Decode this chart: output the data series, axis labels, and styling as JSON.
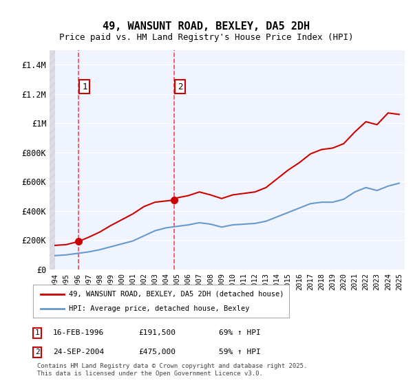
{
  "title": "49, WANSUNT ROAD, BEXLEY, DA5 2DH",
  "subtitle": "Price paid vs. HM Land Registry's House Price Index (HPI)",
  "legend_label_red": "49, WANSUNT ROAD, BEXLEY, DA5 2DH (detached house)",
  "legend_label_blue": "HPI: Average price, detached house, Bexley",
  "footer": "Contains HM Land Registry data © Crown copyright and database right 2025.\nThis data is licensed under the Open Government Licence v3.0.",
  "sale1_label": "1",
  "sale1_date": "16-FEB-1996",
  "sale1_price": "£191,500",
  "sale1_hpi": "69% ↑ HPI",
  "sale2_label": "2",
  "sale2_date": "24-SEP-2004",
  "sale2_price": "£475,000",
  "sale2_hpi": "59% ↑ HPI",
  "red_color": "#cc0000",
  "blue_color": "#6699cc",
  "vline_color": "#ff4444",
  "hatch_color": "#dddddd",
  "background_color": "#ffffff",
  "plot_bg_color": "#f0f4ff",
  "ylim": [
    0,
    1500000
  ],
  "xlim_start": 1993.5,
  "xlim_end": 2025.5,
  "sale1_year": 1996.12,
  "sale2_year": 2004.73,
  "yticks": [
    0,
    200000,
    400000,
    600000,
    800000,
    1000000,
    1200000,
    1400000
  ],
  "ytick_labels": [
    "£0",
    "£200K",
    "£400K",
    "£600K",
    "£800K",
    "£1M",
    "£1.2M",
    "£1.4M"
  ],
  "xtick_years": [
    1994,
    1995,
    1996,
    1997,
    1998,
    1999,
    2000,
    2001,
    2002,
    2003,
    2004,
    2005,
    2006,
    2007,
    2008,
    2009,
    2010,
    2011,
    2012,
    2013,
    2014,
    2015,
    2016,
    2017,
    2018,
    2019,
    2020,
    2021,
    2022,
    2023,
    2024,
    2025
  ],
  "hpi_years": [
    1994,
    1995,
    1996,
    1997,
    1998,
    1999,
    2000,
    2001,
    2002,
    2003,
    2004,
    2005,
    2006,
    2007,
    2008,
    2009,
    2010,
    2011,
    2012,
    2013,
    2014,
    2015,
    2016,
    2017,
    2018,
    2019,
    2020,
    2021,
    2022,
    2023,
    2024,
    2025
  ],
  "hpi_values": [
    95000,
    100000,
    110000,
    120000,
    135000,
    155000,
    175000,
    195000,
    230000,
    265000,
    285000,
    295000,
    305000,
    320000,
    310000,
    290000,
    305000,
    310000,
    315000,
    330000,
    360000,
    390000,
    420000,
    450000,
    460000,
    460000,
    480000,
    530000,
    560000,
    540000,
    570000,
    590000
  ],
  "red_years": [
    1994,
    1995,
    1996.12,
    1997,
    1998,
    1999,
    2000,
    2001,
    2002,
    2003,
    2004.73,
    2005,
    2006,
    2007,
    2008,
    2009,
    2010,
    2011,
    2012,
    2013,
    2014,
    2015,
    2016,
    2017,
    2018,
    2019,
    2020,
    2021,
    2022,
    2023,
    2024,
    2025
  ],
  "red_values": [
    165000,
    170000,
    191500,
    220000,
    255000,
    300000,
    340000,
    380000,
    430000,
    460000,
    475000,
    490000,
    505000,
    530000,
    510000,
    485000,
    510000,
    520000,
    530000,
    560000,
    620000,
    680000,
    730000,
    790000,
    820000,
    830000,
    860000,
    940000,
    1010000,
    990000,
    1070000,
    1060000
  ]
}
